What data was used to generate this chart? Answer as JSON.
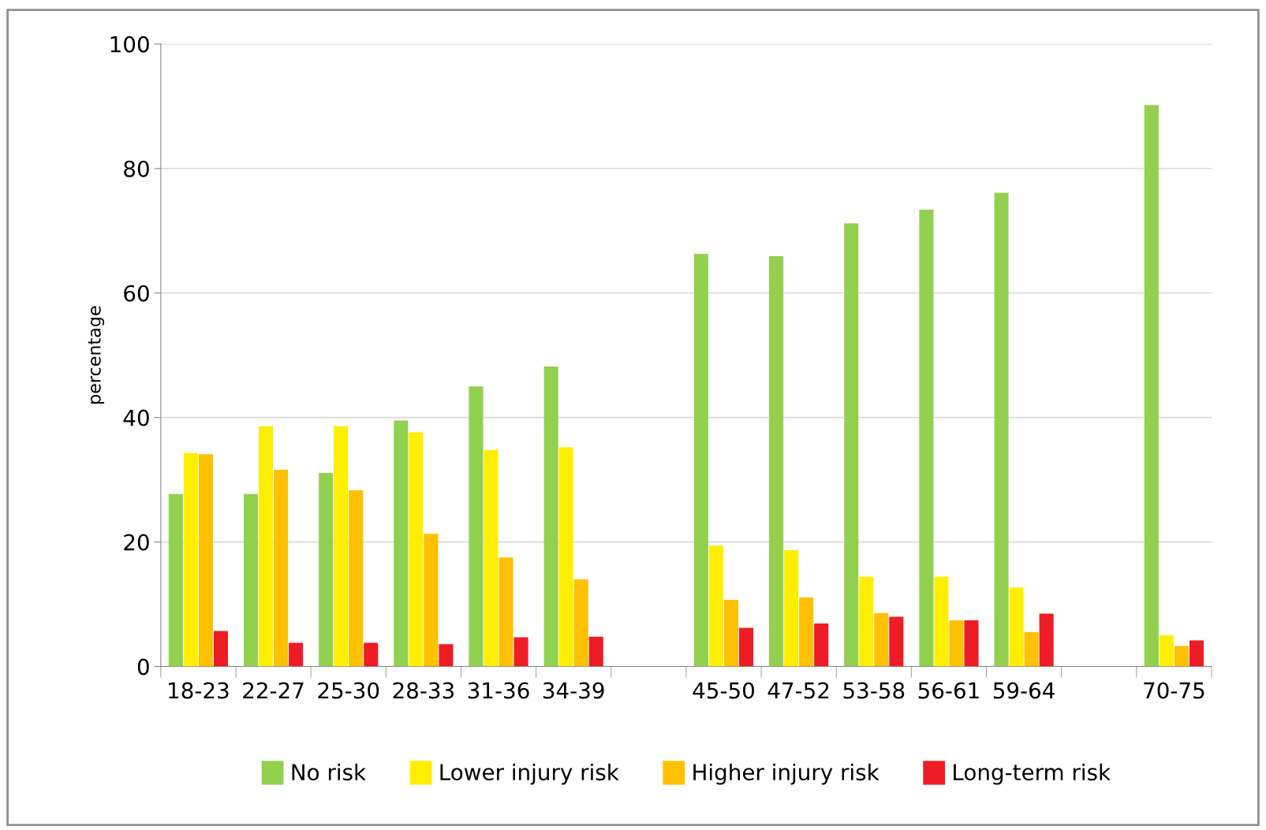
{
  "chart_data": {
    "type": "bar",
    "ylabel": "percentage",
    "categories": [
      "18-23",
      "22-27",
      "25-30",
      "28-33",
      "31-36",
      "34-39",
      null,
      "45-50",
      "47-52",
      "53-58",
      "56-61",
      "59-64",
      null,
      "70-75"
    ],
    "series": [
      {
        "name": "No risk",
        "color": "#92d050",
        "values": [
          27.7,
          27.7,
          31.1,
          39.5,
          45.0,
          48.2,
          null,
          66.3,
          65.9,
          71.2,
          73.4,
          76.1,
          null,
          90.2
        ]
      },
      {
        "name": "Lower injury risk",
        "color": "#ffee00",
        "values": [
          34.3,
          38.6,
          38.6,
          37.6,
          34.8,
          35.2,
          null,
          19.4,
          18.7,
          14.4,
          14.4,
          12.7,
          null,
          5.0
        ]
      },
      {
        "name": "Higher injury risk",
        "color": "#ffc000",
        "values": [
          34.1,
          31.6,
          28.3,
          21.3,
          17.5,
          14.0,
          null,
          10.7,
          11.1,
          8.6,
          7.4,
          5.5,
          null,
          3.3
        ]
      },
      {
        "name": "Long-term risk",
        "color": "#ee1c25",
        "values": [
          5.7,
          3.8,
          3.8,
          3.6,
          4.7,
          4.8,
          null,
          6.2,
          6.9,
          8.0,
          7.4,
          8.5,
          null,
          4.2
        ]
      }
    ],
    "ylim": [
      0,
      100
    ],
    "yticks": [
      0,
      20,
      40,
      60,
      80,
      100
    ],
    "grid": "y",
    "legend": "bottom"
  }
}
